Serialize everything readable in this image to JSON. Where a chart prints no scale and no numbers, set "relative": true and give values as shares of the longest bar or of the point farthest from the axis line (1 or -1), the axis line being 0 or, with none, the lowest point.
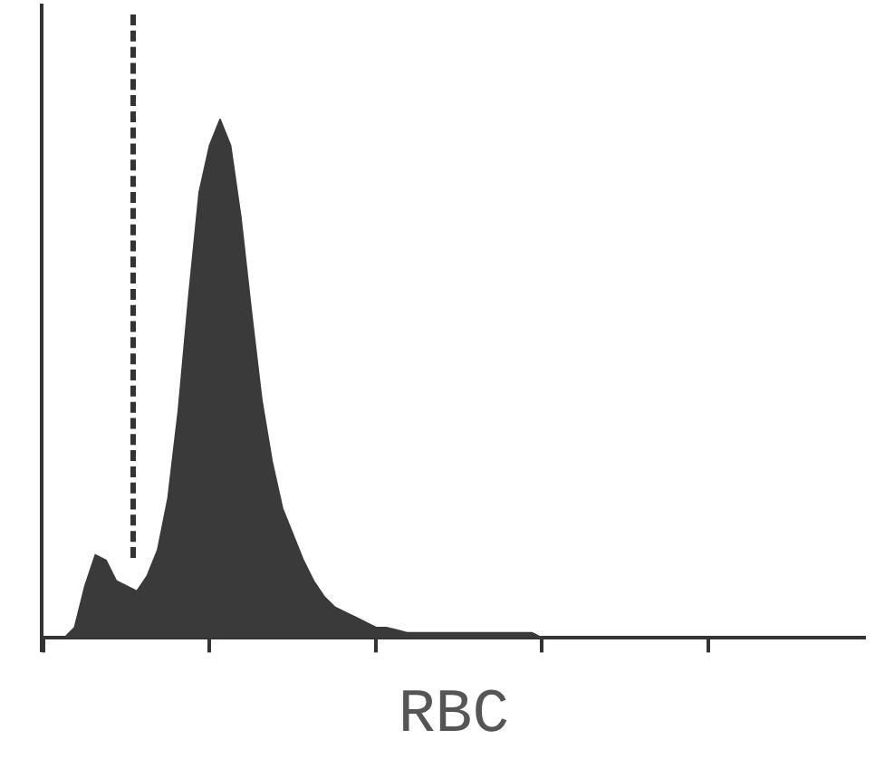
{
  "chart_data": {
    "type": "area",
    "relative": true,
    "xlabel": "RBC",
    "categories": [
      null,
      null,
      null,
      null,
      null,
      null,
      null,
      null,
      null,
      null,
      null,
      null,
      null,
      null,
      null,
      null,
      null,
      null,
      null,
      null,
      null,
      null,
      null,
      null,
      null,
      null,
      null,
      null,
      null,
      null,
      null,
      null,
      null,
      null,
      null,
      null,
      null,
      null,
      null,
      null,
      null,
      null,
      null,
      null,
      null,
      null,
      null,
      null,
      null,
      null,
      null,
      null,
      null,
      null,
      null,
      null,
      null,
      null,
      null,
      null,
      null,
      null,
      null,
      null,
      null,
      null,
      null,
      null,
      null,
      null,
      null,
      null,
      null,
      null,
      null,
      null,
      null,
      null,
      null,
      null
    ],
    "series": [
      {
        "color": "#3a3a3a",
        "values": [
          0,
          0,
          0,
          0.02,
          0.1,
          0.16,
          0.15,
          0.11,
          0.1,
          0.09,
          0.12,
          0.17,
          0.27,
          0.44,
          0.66,
          0.86,
          0.95,
          1,
          0.95,
          0.81,
          0.63,
          0.46,
          0.34,
          0.25,
          0.2,
          0.15,
          0.11,
          0.08,
          0.06,
          0.05,
          0.04,
          0.03,
          0.02,
          0.02,
          0.015,
          0.01,
          0.01,
          0.01,
          0.01,
          0.01,
          0.01,
          0.01,
          0.01,
          0.01,
          0.01,
          0.01,
          0.01,
          0.01,
          0,
          0,
          0,
          0,
          0,
          0,
          0,
          0,
          0,
          0,
          0,
          0,
          0,
          0,
          0,
          0,
          0,
          0,
          0,
          0,
          0,
          0,
          0,
          0,
          0,
          0,
          0,
          0,
          0,
          0,
          0,
          0
        ]
      }
    ],
    "grid": false,
    "legend": false
  }
}
